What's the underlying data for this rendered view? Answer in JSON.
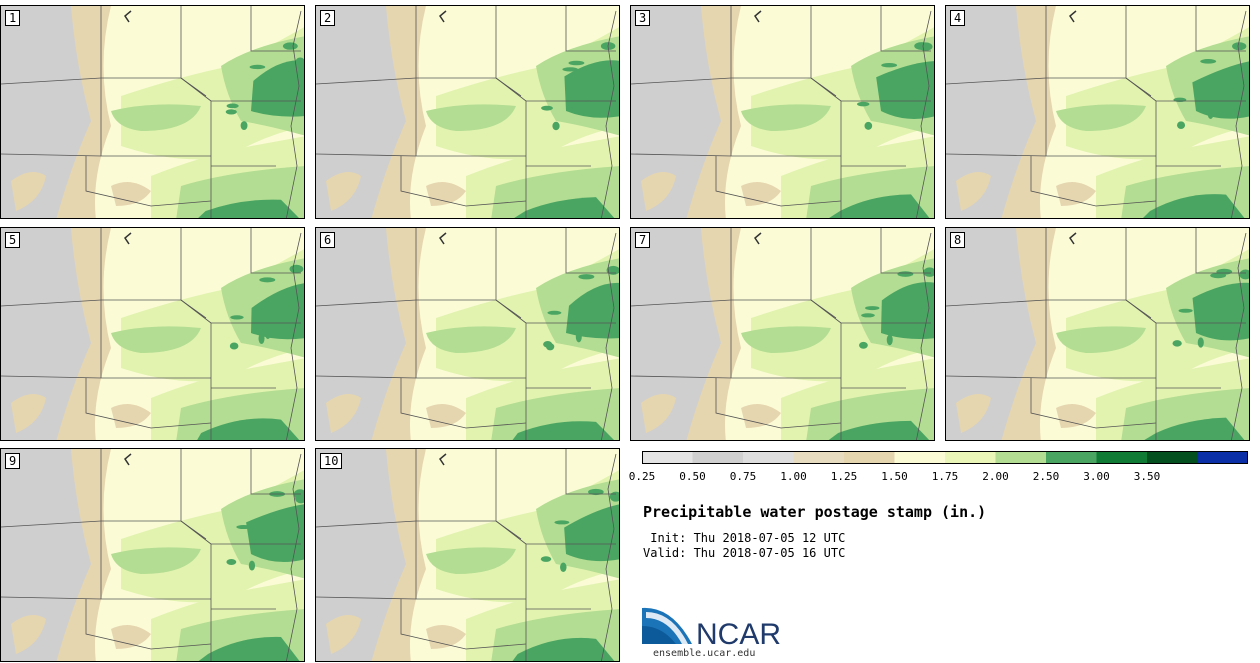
{
  "panels": [
    {
      "label": "1"
    },
    {
      "label": "2"
    },
    {
      "label": "3"
    },
    {
      "label": "4"
    },
    {
      "label": "5"
    },
    {
      "label": "6"
    },
    {
      "label": "7"
    },
    {
      "label": "8"
    },
    {
      "label": "9"
    },
    {
      "label": "10"
    }
  ],
  "colorbar": {
    "ticks": [
      "0.25",
      "0.50",
      "0.75",
      "1.00",
      "1.25",
      "1.50",
      "1.75",
      "2.00",
      "2.50",
      "3.00",
      "3.50"
    ],
    "colors": [
      "#e4e4e4",
      "#d0d0d0",
      "#dedede",
      "#e8dcc0",
      "#e6d6b0",
      "#fbfcd6",
      "#eaf5b8",
      "#b3dd92",
      "#4aa563",
      "#0f7b34",
      "#04501f",
      "#0b2fa6"
    ]
  },
  "title": "Precipitable water postage stamp (in.)",
  "init_line": " Init: Thu 2018-07-05 12 UTC",
  "valid_line": "Valid: Thu 2018-07-05 16 UTC",
  "logo": {
    "text": "NCAR",
    "url": "ensemble.ucar.edu"
  },
  "map_colors": {
    "gray": "#cfcfcf",
    "tan": "#e6d6b0",
    "cream": "#fbfcd6",
    "light_green": "#e2f3b0",
    "mid_green": "#b3dd92",
    "dark_green": "#4aa563",
    "deep_green": "#2f8f4e",
    "boundary": "#555555"
  }
}
